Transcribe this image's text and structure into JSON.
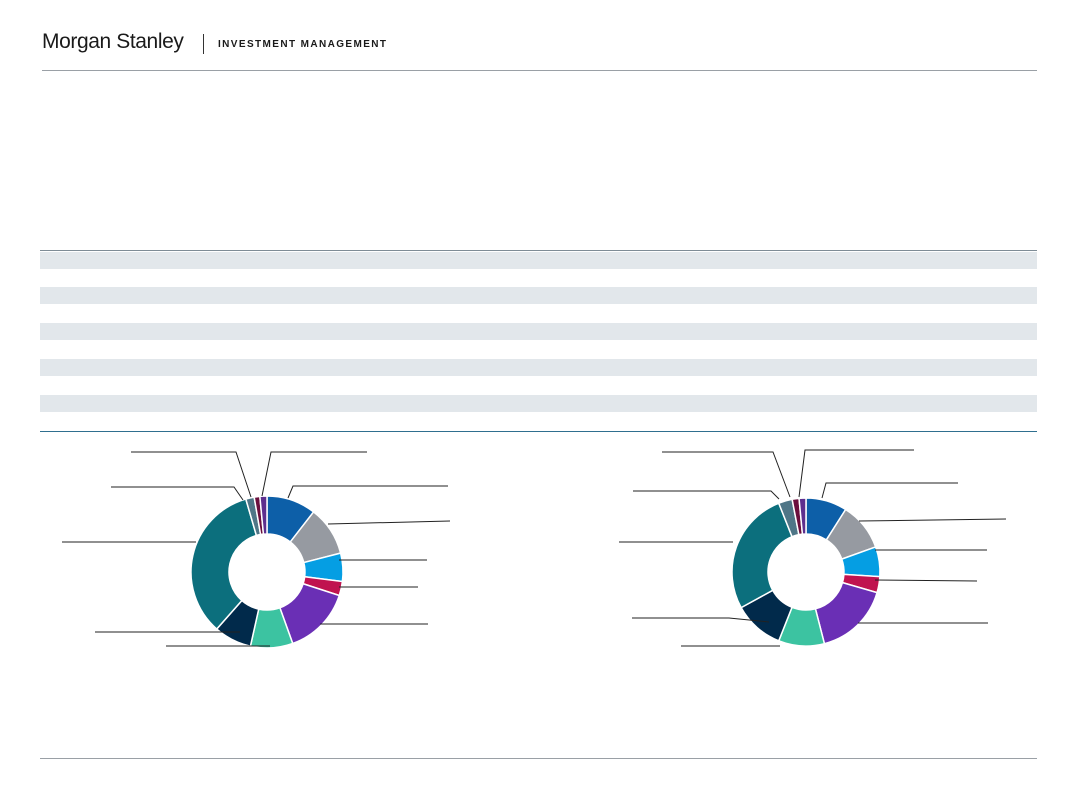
{
  "header": {
    "brand": "Morgan Stanley",
    "subtitle": "INVESTMENT MANAGEMENT"
  },
  "table": {
    "striped_rows": 5,
    "stripe_color": "#e2e7eb"
  },
  "chart_data": [
    {
      "type": "pie",
      "style": "donut",
      "title": "",
      "series": [
        {
          "values": [
            10.5,
            10.5,
            6.0,
            3.0,
            14.5,
            9.0,
            8.0,
            34.0,
            1.8,
            1.2,
            1.5
          ],
          "colors": [
            "#0d5fa8",
            "#969aa1",
            "#059ee3",
            "#c0134f",
            "#6a2fb5",
            "#3cc3a1",
            "#012a4b",
            "#0c6f7d",
            "#4f7687",
            "#6b0f3d",
            "#5e2f8e"
          ]
        }
      ]
    },
    {
      "type": "pie",
      "style": "donut",
      "title": "",
      "series": [
        {
          "values": [
            9.0,
            10.5,
            6.5,
            3.5,
            16.5,
            10.0,
            11.0,
            27.0,
            3.0,
            1.5,
            1.5
          ],
          "colors": [
            "#0d5fa8",
            "#969aa1",
            "#059ee3",
            "#c0134f",
            "#6a2fb5",
            "#3cc3a1",
            "#012a4b",
            "#0c6f7d",
            "#4f7687",
            "#6b0f3d",
            "#5e2f8e"
          ]
        }
      ]
    }
  ]
}
